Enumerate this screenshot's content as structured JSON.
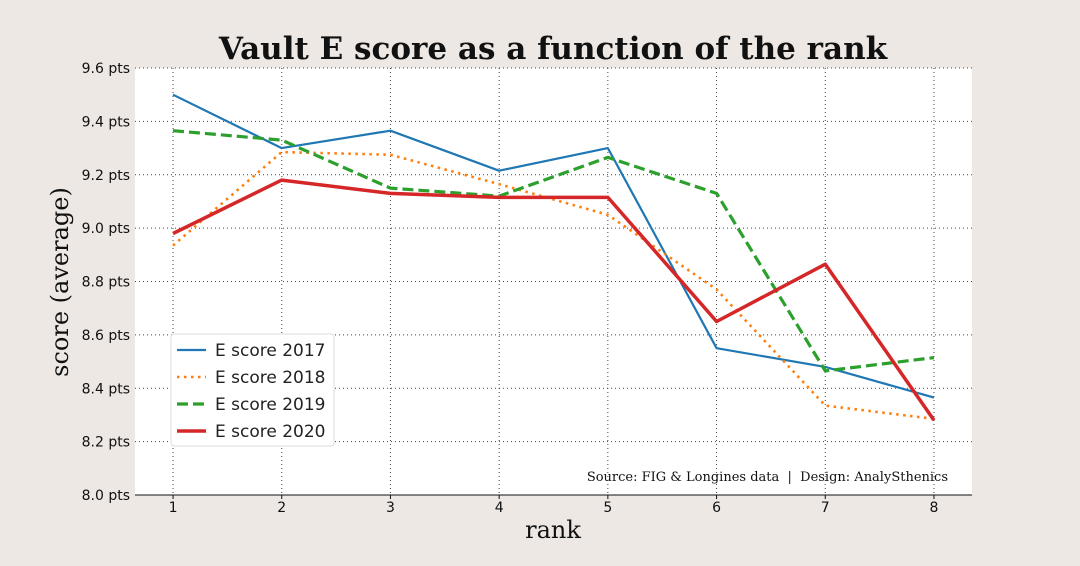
{
  "chart_data": {
    "type": "line",
    "title": "Vault E score as a function of the rank",
    "xlabel": "rank",
    "ylabel": "score (average)",
    "x": [
      1,
      2,
      3,
      4,
      5,
      6,
      7,
      8
    ],
    "x_tick_labels": [
      "1",
      "2",
      "3",
      "4",
      "5",
      "6",
      "7",
      "8"
    ],
    "xlim": [
      0.65,
      8.35
    ],
    "ylim": [
      8.0,
      9.6
    ],
    "y_ticks": [
      8.0,
      8.2,
      8.4,
      8.6,
      8.8,
      9.0,
      9.2,
      9.4,
      9.6
    ],
    "y_tick_labels": [
      "8.0 pts",
      "8.2 pts",
      "8.4 pts",
      "8.6 pts",
      "8.8 pts",
      "9.0 pts",
      "9.2 pts",
      "9.4 pts",
      "9.6 pts"
    ],
    "grid": true,
    "legend_position": "lower-left",
    "series": [
      {
        "name": "E score 2017",
        "color": "#1f77b4",
        "style": "solid",
        "values": [
          9.5,
          9.3,
          9.365,
          9.215,
          9.3,
          8.55,
          8.48,
          8.365
        ]
      },
      {
        "name": "E score 2018",
        "color": "#ff7f0e",
        "style": "dotted",
        "values": [
          8.935,
          9.285,
          9.275,
          9.165,
          9.05,
          8.77,
          8.335,
          8.285
        ]
      },
      {
        "name": "E score 2019",
        "color": "#2ca02c",
        "style": "dashed",
        "values": [
          9.365,
          9.33,
          9.15,
          9.12,
          9.265,
          9.13,
          8.465,
          8.515
        ]
      },
      {
        "name": "E score 2020",
        "color": "#d62728",
        "style": "solid-thick",
        "values": [
          8.98,
          9.18,
          9.13,
          9.115,
          9.115,
          8.65,
          8.865,
          8.28
        ]
      }
    ],
    "source": "Source: FIG & Longines data  |  Design: AnalySthenics"
  },
  "colors": {
    "background": "#ede8e4",
    "plot_area": "#ffffff"
  }
}
